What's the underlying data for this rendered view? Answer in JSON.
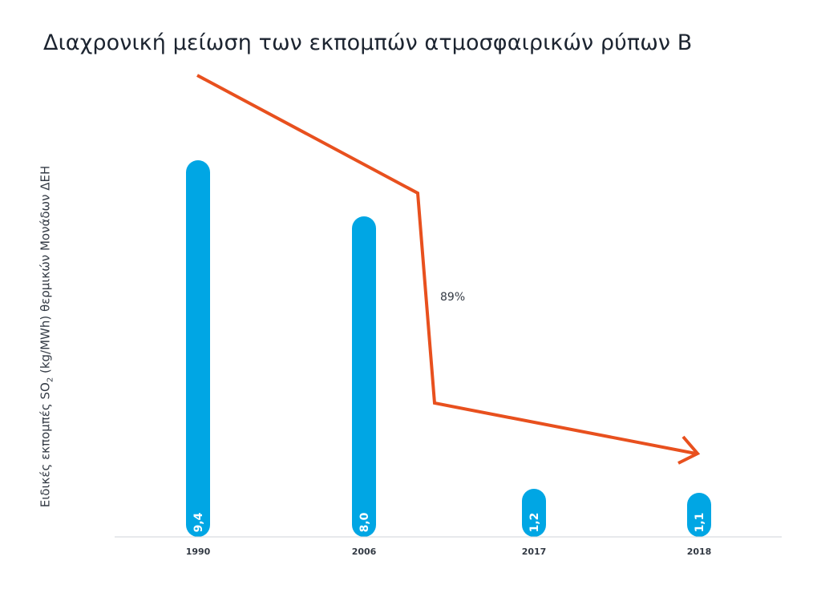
{
  "chart_data": {
    "type": "bar",
    "title": "Διαχρονική μείωση των εκπομπών ατμοσφαιρικών ρύπων Β",
    "ylabel": {
      "pre": "Ειδικές εκπομπές SO",
      "sub": "2",
      "post": " (kg/MWh) θερμικών Μονάδων ΔΕΗ"
    },
    "xlabel": "",
    "categories": [
      "1990",
      "2006",
      "2017",
      "2018"
    ],
    "values": [
      9.4,
      8.0,
      1.2,
      1.1
    ],
    "value_labels": [
      "9,4",
      "8,0",
      "1,2",
      "1,1"
    ],
    "ylim": [
      0,
      10
    ],
    "grid": false,
    "bar_color": "#00a6e4",
    "annotation": {
      "text": "89%",
      "type": "trend-arrow",
      "color": "#e8501e"
    }
  }
}
